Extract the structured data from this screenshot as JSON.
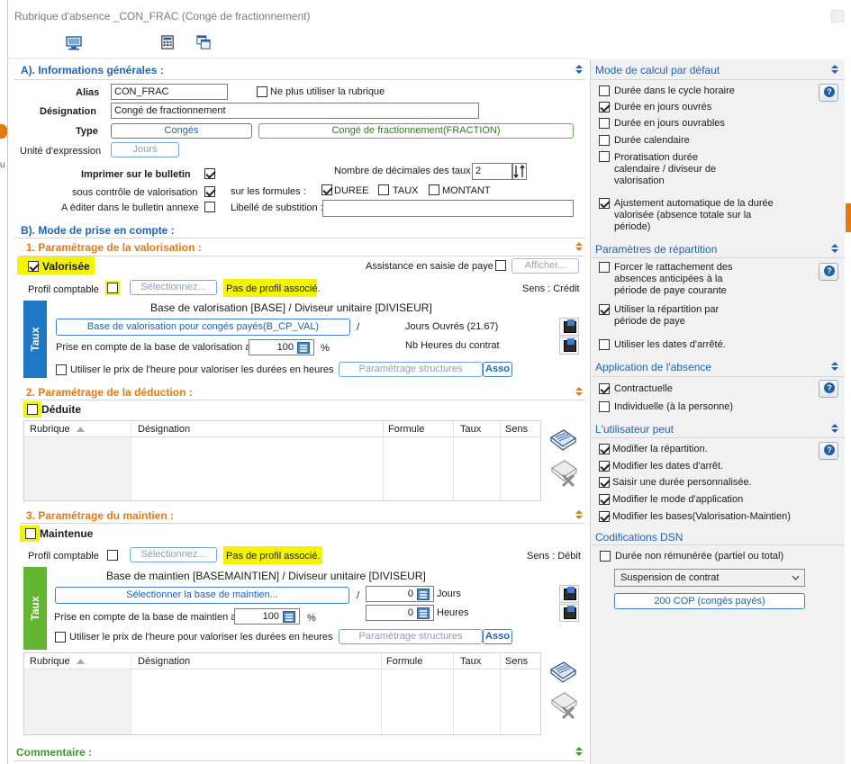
{
  "window": {
    "title": "Rubrique d'absence _CON_FRAC (Congé de fractionnement)"
  },
  "toolbar": {
    "icons": [
      "monitor-icon",
      "calculator-icon",
      "copy-window-icon"
    ]
  },
  "section_a": {
    "title": "A). Informations générales :",
    "alias_label": "Alias",
    "alias_value": "CON_FRAC",
    "no_use_label": "Ne plus utiliser la rubrique",
    "designation_label": "Désignation",
    "designation_value": "Congé de fractionnement",
    "type_label": "Type",
    "type_value": "Congés",
    "type_detail": "Congé de fractionnement(FRACTION)",
    "unit_label": "Unité d'expression",
    "unit_value": "Jours",
    "print_label": "Imprimer sur le bulletin",
    "decimals_label": "Nombre de décimales des taux",
    "decimals_value": "2",
    "valuation_control_label": "sous contrôle de valorisation",
    "formulas_label": "sur les formules :",
    "formula_duree": "DUREE",
    "formula_taux": "TAUX",
    "formula_montant": "MONTANT",
    "annex_label": "A éditer dans le bulletin annexe",
    "substitution_label": "Libellé de substition :"
  },
  "section_b": {
    "title": "B). Mode de prise en compte :",
    "valorisation": {
      "title": "1. Paramétrage de la valorisation :",
      "checkbox_label": "Valorisée",
      "assistance_label": "Assistance en saisie de paye",
      "show_button": "Afficher...",
      "profile_label": "Profil comptable",
      "select_button": "Sélectionnez...",
      "no_profile": "Pas de profil associé.",
      "direction": "Sens : Crédit",
      "tab_label": "Taux",
      "base_title": "Base de valorisation [BASE] / Diviseur unitaire [DIVISEUR]",
      "base_button": "Base  de valorisation pour congés payés(B_CP_VAL)",
      "slash": "/",
      "divisor_text": "Jours Ouvrés (21.67)",
      "base_percent_label": "Prise en compte de la base de valorisation a",
      "base_percent_value": "100",
      "percent_sign": "%",
      "hours_text": "Nb Heures du contrat",
      "hourly_label": "Utiliser le prix de l'heure pour valoriser les durées en heures",
      "structure_button": "Paramétrage structures",
      "asso_label": "Asso"
    },
    "deduction": {
      "title": "2. Paramétrage de la déduction :",
      "checkbox_label": "Déduite",
      "columns": [
        "Rubrique",
        "Désignation",
        "Formule",
        "Taux",
        "Sens"
      ]
    },
    "maintien": {
      "title": "3. Paramétrage du maintien :",
      "checkbox_label": "Maintenue",
      "profile_label": "Profil comptable",
      "select_button": "Sélectionnez...",
      "no_profile": "Pas de profil associé.",
      "direction": "Sens : Débit",
      "tab_label": "Taux",
      "base_title": "Base de maintien [BASEMAINTIEN] / Diviseur unitaire [DIVISEUR]",
      "base_button": "Sélectionner la base de maintien...",
      "slash": "/",
      "days_value": "0",
      "days_label": "Jours",
      "hours_value": "0",
      "hours_label": "Heures",
      "base_percent_label": "Prise en compte de la base de maintien a",
      "base_percent_value": "100",
      "percent_sign": "%",
      "hourly_label": "Utiliser le prix de l'heure pour valoriser les durées en heures",
      "structure_button": "Paramétrage structures",
      "asso_label": "Asso",
      "columns": [
        "Rubrique",
        "Désignation",
        "Formule",
        "Taux",
        "Sens"
      ]
    },
    "commentaire_title": "Commentaire :"
  },
  "right_panel": {
    "calc_mode": {
      "title": "Mode de calcul par défaut",
      "opt1": "Durée dans le cycle horaire",
      "opt2": "Durée en jours ouvrés",
      "opt3": "Durée en jours ouvrables",
      "opt4": "Durée calendaire",
      "opt5_l1": "Proratisation durée",
      "opt5_l2": "calendaire / diviseur de",
      "opt5_l3": "valorisation",
      "opt6_l1": "Ajustement automatique de la durée",
      "opt6_l2": "valorisée (absence totale sur la",
      "opt6_l3": "période)"
    },
    "repartition": {
      "title": "Paramètres de répartition",
      "opt1_l1": "Forcer le rattachement des",
      "opt1_l2": "absences anticipées à la",
      "opt1_l3": "période de paye courante",
      "opt2_l1": "Utiliser la répartition par",
      "opt2_l2": "période de paye",
      "opt3": "Utiliser les dates d'arrêté."
    },
    "application": {
      "title": "Application de l'absence",
      "opt1": "Contractuelle",
      "opt2": "Individuelle (à la personne)"
    },
    "user_can": {
      "title": "L'utilisateur peut",
      "opt1": "Modifier la répartition.",
      "opt2": "Modifier les dates d'arrêt.",
      "opt3": "Saisir une durée personnalisée.",
      "opt4": "Modifier le mode d'application",
      "opt5": "Modifier les bases(Valorisation-Maintien)"
    },
    "dsn": {
      "title": "Codifications DSN",
      "opt1": "Durée non rémunérée (partiel ou total)",
      "select_value": "Suspension de contrat",
      "code_button": "200 COP (congés payés)"
    }
  }
}
